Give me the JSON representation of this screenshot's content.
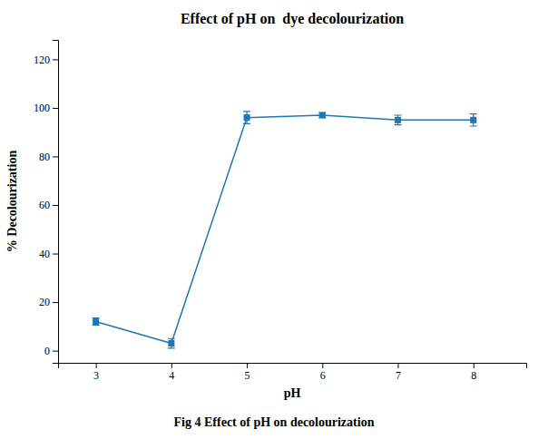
{
  "chart_data": {
    "type": "line",
    "title": "Effect of pH on  dye decolourization",
    "xlabel": "pH",
    "ylabel": "% Decolourization",
    "caption": "Fig 4 Effect of pH on decolourization",
    "x": [
      3,
      4,
      5,
      6,
      7,
      8
    ],
    "values": [
      12,
      3,
      96,
      97,
      95,
      95
    ],
    "errors": [
      1.5,
      2.0,
      2.5,
      1.0,
      2.0,
      2.5
    ],
    "xlim": [
      2.5,
      8.7
    ],
    "xticks": [
      3,
      4,
      5,
      6,
      7,
      8
    ],
    "ylim": [
      -5,
      128
    ],
    "yticks": [
      0,
      20,
      40,
      60,
      80,
      100,
      120
    ],
    "marker": "square",
    "grid": false
  }
}
